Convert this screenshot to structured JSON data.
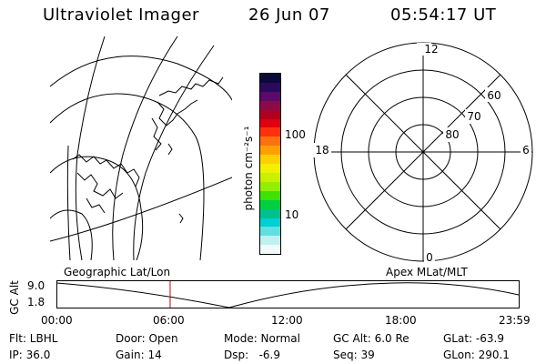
{
  "header": {
    "title": "Ultraviolet Imager",
    "date": "26 Jun 07",
    "time": "05:54:17 UT"
  },
  "colorbar": {
    "label": "photon cm⁻²s⁻¹",
    "tick_top": "100",
    "tick_bottom": "10",
    "colors": [
      "#0a0a3a",
      "#2a0a5a",
      "#5a0a6a",
      "#8a0a4a",
      "#b00020",
      "#e00010",
      "#ff3010",
      "#ff7010",
      "#ffa000",
      "#ffd000",
      "#f0f000",
      "#c8f000",
      "#90f000",
      "#40e000",
      "#00d040",
      "#00c090",
      "#00d0d0",
      "#60e0e0",
      "#c0f0f0",
      "#f0fafa"
    ]
  },
  "polar": {
    "labels": {
      "top": "12",
      "bottom": "0",
      "left": "18",
      "right": "6"
    },
    "rings": [
      "60",
      "70",
      "80"
    ]
  },
  "timeline": {
    "left_label": "Geographic Lat/Lon",
    "right_label": "Apex MLat/MLT",
    "axis_title": "GC Alt",
    "y_max": "9.0",
    "y_min": "1.8",
    "ticks": [
      "00:00",
      "06:00",
      "12:00",
      "18:00",
      "23:59"
    ],
    "marker_color": "#cc0000",
    "marker_time": "05:54"
  },
  "info": {
    "filter": "Flt: LBHL",
    "door": "Door: Open",
    "mode": "Mode: Normal",
    "gc_alt": "GC Alt: 6.0 Re",
    "glat": "GLat: -63.9",
    "ip": "IP: 36.0",
    "gain": "Gain: 14",
    "dsp": "Dsp:   -6.9",
    "seq": "Seq: 39",
    "glon": "GLon: 290.1"
  }
}
